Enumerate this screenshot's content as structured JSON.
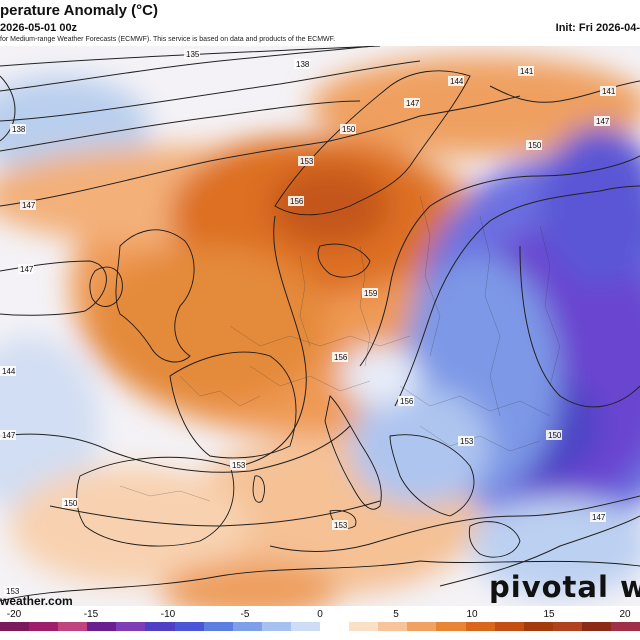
{
  "header": {
    "title": "perature Anomaly (°C)",
    "valid": "2026-05-01 00z",
    "init": "Init: Fri 2026-04-",
    "credit": "for Medium-range Weather Forecasts (ECMWF). This service is based on data and products of the ECMWF."
  },
  "map": {
    "contours": [
      {
        "label": "135"
      },
      {
        "label": "138"
      },
      {
        "label": "141"
      },
      {
        "label": "144"
      },
      {
        "label": "147"
      },
      {
        "label": "150"
      },
      {
        "label": "153"
      },
      {
        "label": "156"
      },
      {
        "label": "159"
      }
    ]
  },
  "colorbar": {
    "ticks": [
      "-20",
      "-15",
      "-10",
      "-5",
      "0",
      "5",
      "10",
      "15",
      "20"
    ],
    "colors": [
      "#7a1a5c",
      "#a01f6b",
      "#c0447e",
      "#6a1f8f",
      "#7e3cb5",
      "#4f3fc4",
      "#4a55d8",
      "#5c7ee0",
      "#7fa0e8",
      "#a6c0ef",
      "#cfdcf5",
      "#ffffff",
      "#fbe0c8",
      "#f6c39a",
      "#f0a263",
      "#e88535",
      "#d9661d",
      "#c24e12",
      "#a43b0c",
      "#b0421e",
      "#8a2a17",
      "#a0304a"
    ]
  },
  "branding": {
    "watermark": "pivotal we",
    "site": "weather.com"
  }
}
